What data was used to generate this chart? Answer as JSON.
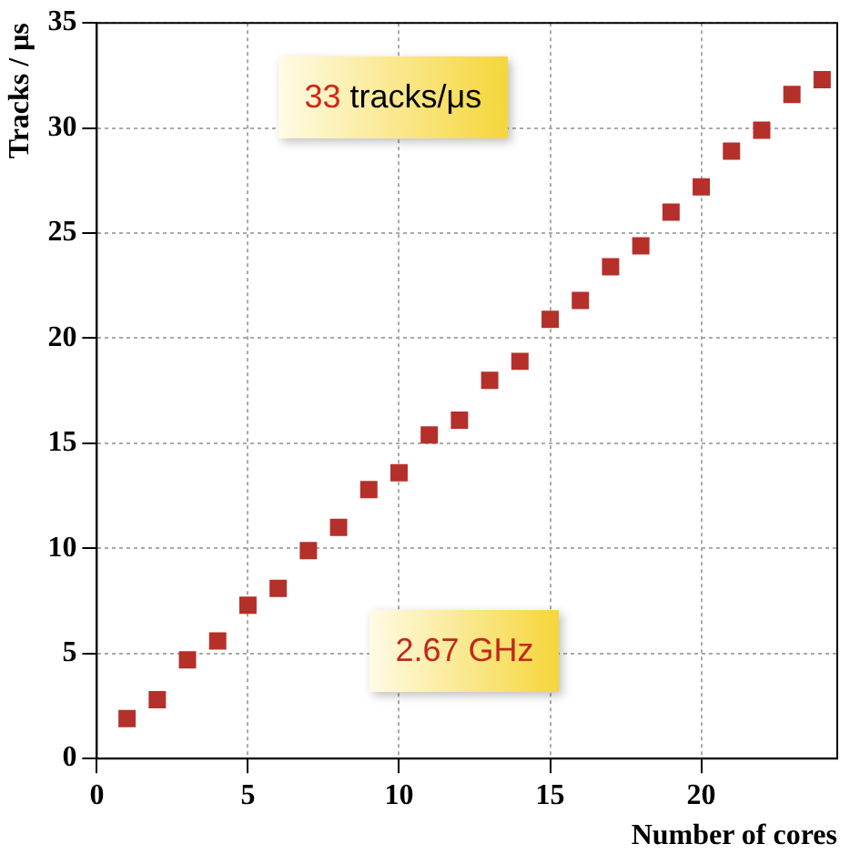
{
  "chart_data": {
    "type": "scatter",
    "xlabel": "Number of cores",
    "ylabel": "Tracks / μs",
    "x": [
      1,
      2,
      3,
      4,
      5,
      6,
      7,
      8,
      9,
      10,
      11,
      12,
      13,
      14,
      15,
      16,
      17,
      18,
      19,
      20,
      21,
      22,
      23,
      24
    ],
    "series": [
      {
        "color": "#b5302a",
        "values": [
          1.9,
          2.8,
          4.7,
          5.6,
          7.3,
          8.1,
          9.9,
          11.0,
          12.8,
          13.6,
          15.4,
          16.1,
          18.0,
          18.9,
          20.9,
          21.8,
          23.4,
          24.4,
          26.0,
          27.2,
          28.9,
          29.9,
          31.6,
          32.3
        ]
      }
    ],
    "xlim": [
      0,
      24.5
    ],
    "xticks": [
      0,
      5,
      10,
      15,
      20
    ],
    "ylim": [
      0,
      35
    ],
    "yticks": [
      0,
      5,
      10,
      15,
      20,
      25,
      30,
      35
    ],
    "grid": true,
    "marker": "square",
    "legend": false,
    "annotations": [
      "33 tracks/μs",
      "2.67 GHz"
    ]
  }
}
